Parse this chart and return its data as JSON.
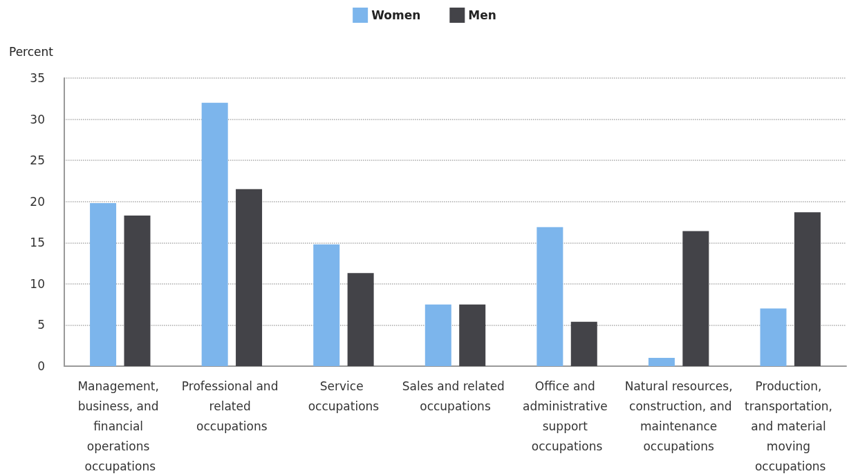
{
  "chart_data": {
    "type": "bar",
    "ylabel": "Percent",
    "categories": [
      "Management, business, and financial operations occupations",
      "Professional and related occupations",
      "Service occupations",
      "Sales and related occupations",
      "Office and administrative support occupations",
      "Natural resources, construction, and maintenance occupations",
      "Production, transportation, and material moving occupations"
    ],
    "series": [
      {
        "name": "Women",
        "color": "#7cb5ec",
        "values": [
          19.8,
          32.0,
          14.8,
          7.5,
          16.9,
          1.0,
          7.0
        ]
      },
      {
        "name": "Men",
        "color": "#434348",
        "values": [
          18.3,
          21.5,
          11.3,
          7.5,
          5.4,
          16.4,
          18.7
        ]
      }
    ],
    "ylim": [
      0,
      35
    ],
    "yticks": [
      0,
      5,
      10,
      15,
      20,
      25,
      30,
      35
    ],
    "grid": "y",
    "legend": "top"
  }
}
